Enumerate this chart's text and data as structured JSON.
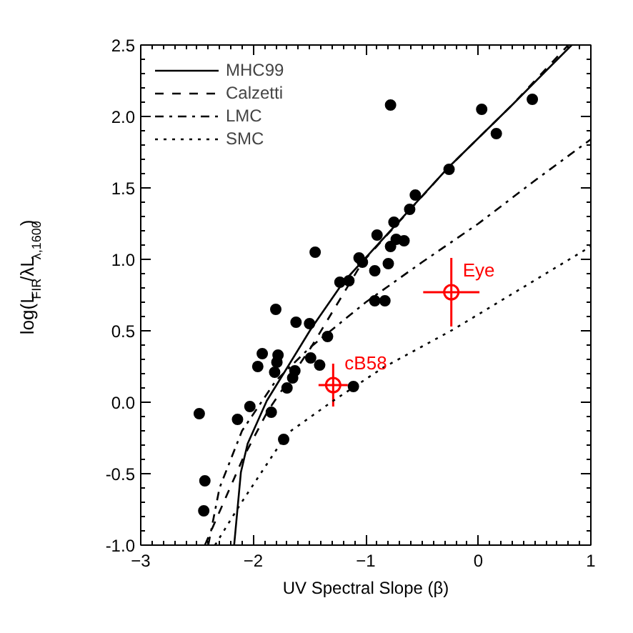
{
  "chart_data": {
    "type": "scatter",
    "xlabel": "UV Spectral Slope (β)",
    "ylabel": "log(L$_{FIR}$/λL$_{λ,1600}$)",
    "xlim": [
      -3,
      1
    ],
    "xticks": [
      -3,
      -2,
      -1,
      0,
      1
    ],
    "ylim": [
      -1.0,
      2.5
    ],
    "yticks": [
      {
        "value": -1.0,
        "label": "-1.0"
      },
      {
        "value": -0.5,
        "label": "-0.5"
      },
      {
        "value": 0.0,
        "label": "0.0"
      },
      {
        "value": 0.5,
        "label": "0.5"
      },
      {
        "value": 1.0,
        "label": "1.0"
      },
      {
        "value": 1.5,
        "label": "1.5"
      },
      {
        "value": 2.0,
        "label": "2.0"
      },
      {
        "value": 2.5,
        "label": "2.5"
      }
    ],
    "grid": false,
    "legend": "top left",
    "series": [
      {
        "name": "MHC99",
        "type": "line",
        "line_style": "solid",
        "color": "#000000",
        "x": [
          -2.17,
          -2.11,
          -2.05,
          -1.88,
          -1.7,
          -1.49,
          -1.2,
          -0.27,
          0.3,
          0.83
        ],
        "values": [
          -1.0,
          -0.49,
          -0.29,
          0.01,
          0.24,
          0.51,
          0.84,
          1.64,
          2.08,
          2.5
        ]
      },
      {
        "name": "Calzetti",
        "type": "line",
        "line_style": "dashed",
        "color": "#000000",
        "x": [
          -2.43,
          -2.09,
          -1.87,
          -1.49,
          -1.03,
          -0.27,
          0.3,
          0.8
        ],
        "values": [
          -1.0,
          -0.39,
          -0.06,
          0.38,
          0.98,
          1.64,
          2.08,
          2.5
        ]
      },
      {
        "name": "LMC",
        "type": "line",
        "line_style": "dashdot",
        "color": "#000000",
        "x": [
          -2.4,
          -2.3,
          -2.1,
          -1.8,
          -1.5,
          -1.0,
          -0.5,
          0.0,
          0.5,
          1.0
        ],
        "values": [
          -1.0,
          -0.6,
          -0.2,
          0.15,
          0.38,
          0.7,
          0.98,
          1.25,
          1.55,
          1.84
        ]
      },
      {
        "name": "SMC",
        "type": "line",
        "line_style": "dotted",
        "color": "#000000",
        "x": [
          -2.34,
          -2.12,
          -1.7,
          -1.29,
          -0.85,
          -0.22,
          0.83,
          1.0
        ],
        "values": [
          -1.0,
          -0.72,
          -0.22,
          0.01,
          0.24,
          0.51,
          1.01,
          1.09
        ]
      },
      {
        "type": "scatter",
        "marker": "circle",
        "color": "#000000",
        "x": [
          -0.78,
          0.03,
          0.48,
          0.16,
          -0.26,
          -0.56,
          -0.61,
          -0.75,
          -0.9,
          -0.73,
          -0.66,
          -0.78,
          -1.45,
          -1.06,
          -1.03,
          -0.8,
          -0.92,
          -1.23,
          -1.15,
          -0.92,
          -0.83,
          -1.8,
          -1.62,
          -1.5,
          -1.34,
          -1.92,
          -1.96,
          -1.78,
          -1.79,
          -1.49,
          -1.41,
          -1.81,
          -1.63,
          -1.65,
          -1.7,
          -1.11,
          -2.03,
          -1.84,
          -2.14,
          -2.48,
          -1.73,
          -2.43,
          -2.44
        ],
        "values": [
          2.08,
          2.05,
          2.12,
          1.88,
          1.63,
          1.45,
          1.35,
          1.26,
          1.17,
          1.14,
          1.13,
          1.09,
          1.05,
          1.01,
          0.98,
          0.97,
          0.92,
          0.84,
          0.85,
          0.71,
          0.71,
          0.65,
          0.56,
          0.55,
          0.46,
          0.34,
          0.25,
          0.33,
          0.28,
          0.31,
          0.26,
          0.21,
          0.22,
          0.17,
          0.1,
          0.11,
          -0.03,
          -0.07,
          -0.12,
          -0.08,
          -0.26,
          -0.55,
          -0.76
        ]
      },
      {
        "name": "cB58",
        "type": "scatter",
        "marker": "circle",
        "color": "#ff0000",
        "x": [
          -1.29
        ],
        "values": [
          0.12
        ],
        "errors": [
          0.15
        ],
        "xerrors": [
          0.13
        ]
      },
      {
        "name": "Eye",
        "type": "scatter",
        "marker": "circle",
        "color": "#ff0000",
        "x": [
          -0.24
        ],
        "values": [
          0.77
        ],
        "errors": [
          0.24
        ],
        "xerrors": [
          0.25
        ]
      }
    ]
  }
}
